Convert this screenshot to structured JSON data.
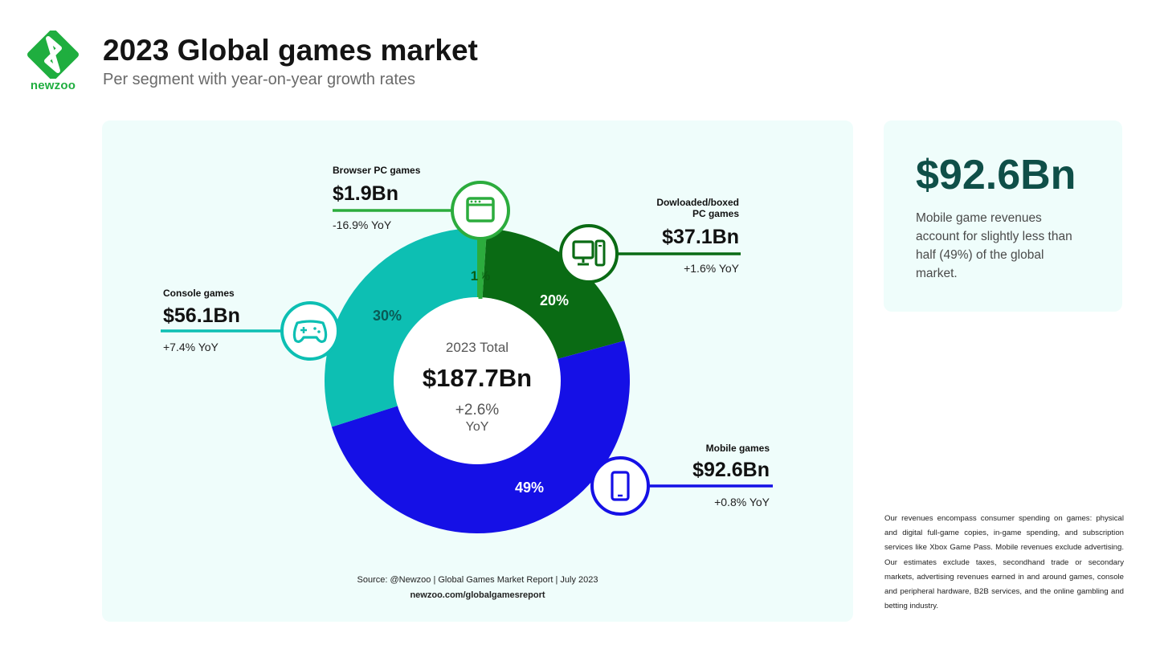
{
  "brand": {
    "name": "newzoo"
  },
  "header": {
    "title": "2023 Global games market",
    "subtitle": "Per segment with year-on-year growth rates"
  },
  "center": {
    "label": "2023 Total",
    "value": "$187.7Bn",
    "growth": "+2.6%",
    "growth_unit": "YoY"
  },
  "segments": [
    {
      "name": "Browser PC games",
      "value": "$1.9Bn",
      "yoy": "-16.9% YoY",
      "percent_label": "1%",
      "color": "#2cac3d",
      "icon": "browser-icon"
    },
    {
      "name": "Dowloaded/boxed PC games",
      "value": "$37.1Bn",
      "yoy": "+1.6% YoY",
      "percent_label": "20%",
      "color": "#0a6b14",
      "icon": "desktop-computer-icon"
    },
    {
      "name": "Mobile games",
      "value": "$92.6Bn",
      "yoy": "+0.8% YoY",
      "percent_label": "49%",
      "color": "#1510e6",
      "icon": "smartphone-icon"
    },
    {
      "name": "Console games",
      "value": "$56.1Bn",
      "yoy": "+7.4% YoY",
      "percent_label": "30%",
      "color": "#0dbfb3",
      "icon": "gamepad-icon"
    }
  ],
  "chart_data": {
    "type": "pie",
    "title": "2023 Global games market",
    "subtitle": "Per segment with year-on-year growth rates",
    "unit": "$Bn",
    "total": 187.7,
    "total_yoy_percent": 2.6,
    "categories": [
      "Browser PC games",
      "Dowloaded/boxed PC games",
      "Mobile games",
      "Console games"
    ],
    "values": [
      1.9,
      37.1,
      92.6,
      56.1
    ],
    "percent": [
      1,
      20,
      49,
      30
    ],
    "yoy_percent": [
      -16.9,
      1.6,
      0.8,
      7.4
    ],
    "colors": [
      "#2cac3d",
      "#0a6b14",
      "#1510e6",
      "#0dbfb3"
    ]
  },
  "sidebar": {
    "value": "$92.6Bn",
    "text": "Mobile game revenues account for slightly less than half (49%) of the global market."
  },
  "source": {
    "line1": "Source: @Newzoo | Global Games Market Report | July 2023",
    "line2": "newzoo.com/globalgamesreport"
  },
  "footnote": "Our revenues encompass consumer spending on games: physical and digital full-game copies, in-game spending, and subscription services like Xbox Game Pass. Mobile revenues exclude advertising. Our estimates exclude taxes, secondhand trade or secondary markets, advertising revenues earned in and around games, console and peripheral hardware, B2B services, and the online gambling and betting industry."
}
